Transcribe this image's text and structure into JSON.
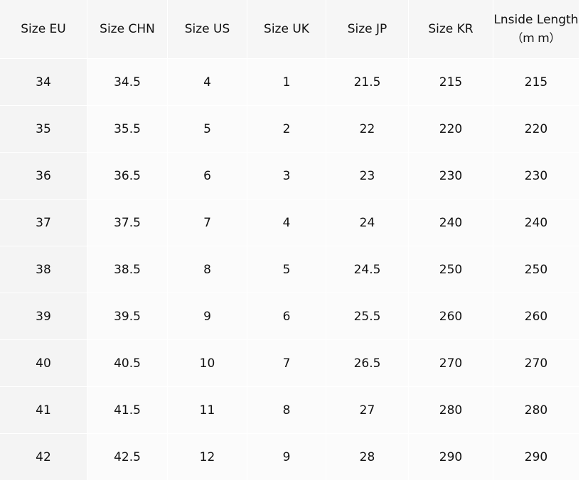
{
  "table": {
    "headers": [
      "Size EU",
      "Size CHN",
      "Size US",
      "Size UK",
      "Size JP",
      "Size KR",
      "Lnside Length"
    ],
    "header_unit": "（ｍ ｍ）",
    "rows": [
      [
        "34",
        "34.5",
        "4",
        "1",
        "21.5",
        "215",
        "215"
      ],
      [
        "35",
        "35.5",
        "5",
        "2",
        "22",
        "220",
        "220"
      ],
      [
        "36",
        "36.5",
        "6",
        "3",
        "23",
        "230",
        "230"
      ],
      [
        "37",
        "37.5",
        "7",
        "4",
        "24",
        "240",
        "240"
      ],
      [
        "38",
        "38.5",
        "8",
        "5",
        "24.5",
        "250",
        "250"
      ],
      [
        "39",
        "39.5",
        "9",
        "6",
        "25.5",
        "260",
        "260"
      ],
      [
        "40",
        "40.5",
        "10",
        "7",
        "26.5",
        "270",
        "270"
      ],
      [
        "41",
        "41.5",
        "11",
        "8",
        "27",
        "280",
        "280"
      ],
      [
        "42",
        "42.5",
        "12",
        "9",
        "28",
        "290",
        "290"
      ]
    ]
  }
}
